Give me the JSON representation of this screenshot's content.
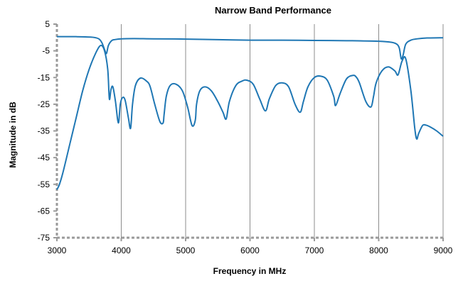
{
  "chart_data": {
    "type": "line",
    "title": "Narrow Band Performance",
    "xlabel": "Frequency in MHz",
    "ylabel": "Magnitude in dB",
    "xlim": [
      3000,
      9000
    ],
    "ylim": [
      -75,
      5
    ],
    "x_ticks": [
      3000,
      4000,
      5000,
      6000,
      7000,
      8000,
      9000
    ],
    "y_ticks": [
      5,
      -5,
      -15,
      -25,
      -35,
      -45,
      -55,
      -65,
      -75
    ],
    "grid": "vertical major gridlines",
    "legend": "none",
    "line_color": "#1f77b4",
    "series": [
      {
        "x": [
          3000,
          3300,
          3550,
          3650,
          3700,
          3740,
          3770,
          3800,
          3850,
          3900,
          4000,
          4200,
          4500,
          5000,
          5500,
          6000,
          6500,
          7000,
          7500,
          8000,
          8200,
          8280,
          8320,
          8350,
          8380,
          8420,
          8500,
          8600,
          8750,
          9000
        ],
        "values": [
          0.3,
          0.3,
          0.1,
          -0.5,
          -2.0,
          -4.5,
          -6.0,
          -3.0,
          -1.2,
          -0.8,
          -0.5,
          -0.4,
          -0.5,
          -0.6,
          -0.8,
          -1.0,
          -1.0,
          -1.1,
          -1.2,
          -1.4,
          -1.8,
          -2.5,
          -4.0,
          -8.0,
          -6.5,
          -2.5,
          -1.0,
          -0.5,
          -0.2,
          -0.1
        ]
      },
      {
        "x": [
          3000,
          3040,
          3100,
          3200,
          3300,
          3400,
          3500,
          3600,
          3680,
          3740,
          3790,
          3815,
          3840,
          3870,
          3910,
          3955,
          3985,
          4020,
          4060,
          4110,
          4145,
          4175,
          4220,
          4300,
          4400,
          4450,
          4520,
          4600,
          4650,
          4665,
          4700,
          4760,
          4850,
          4950,
          5030,
          5100,
          5150,
          5170,
          5220,
          5300,
          5400,
          5500,
          5580,
          5630,
          5680,
          5780,
          5880,
          5950,
          6050,
          6150,
          6240,
          6300,
          6400,
          6500,
          6600,
          6700,
          6780,
          6830,
          6900,
          7000,
          7100,
          7200,
          7300,
          7330,
          7400,
          7500,
          7600,
          7650,
          7700,
          7800,
          7880,
          7920,
          7960,
          8050,
          8150,
          8250,
          8300,
          8360,
          8420,
          8500,
          8560,
          8590,
          8620,
          8680,
          8730,
          8800,
          8900,
          9000
        ],
        "values": [
          -57,
          -55,
          -50,
          -40,
          -30,
          -20,
          -12,
          -6,
          -3,
          -5,
          -12,
          -23,
          -19.5,
          -18.5,
          -24,
          -32,
          -25,
          -22.5,
          -23.5,
          -30,
          -34,
          -25,
          -18,
          -15.2,
          -16.5,
          -18.5,
          -25,
          -31.5,
          -32,
          -29,
          -22,
          -18,
          -17.5,
          -20,
          -26,
          -33,
          -31,
          -25,
          -20,
          -18.5,
          -20,
          -24,
          -28,
          -30.5,
          -24,
          -18,
          -16.3,
          -16,
          -17.5,
          -23,
          -27.5,
          -23,
          -18,
          -17,
          -18.5,
          -25,
          -28,
          -24,
          -18.5,
          -15,
          -14.5,
          -16,
          -22,
          -25.5,
          -21,
          -15.5,
          -14.2,
          -14.8,
          -17,
          -24,
          -26,
          -22,
          -17,
          -12.5,
          -11,
          -12.5,
          -14,
          -9,
          -8,
          -20,
          -34,
          -38,
          -36,
          -33,
          -32.8,
          -33.5,
          -35,
          -37
        ]
      }
    ]
  }
}
